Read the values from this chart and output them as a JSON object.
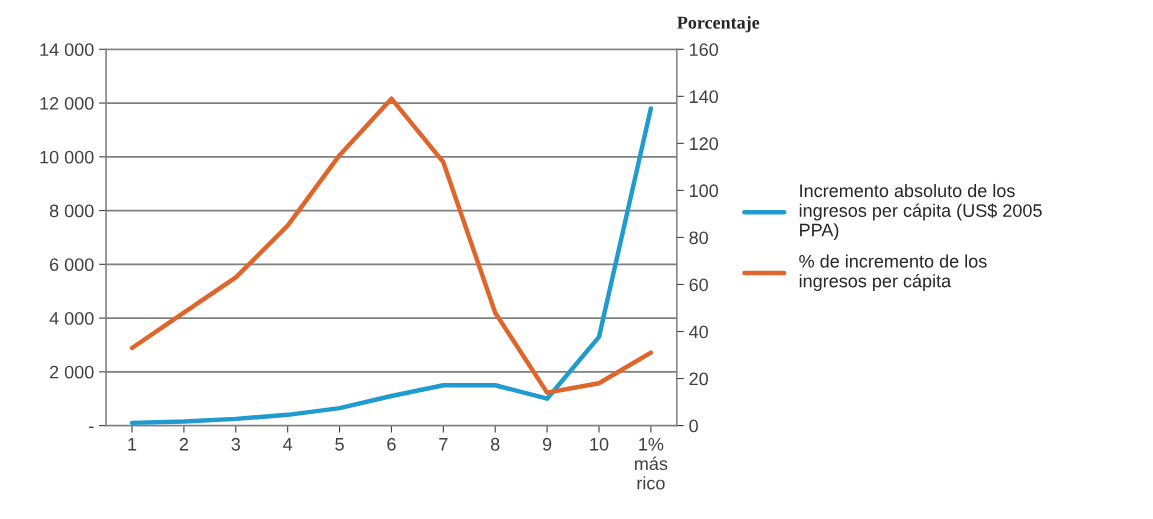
{
  "chart_data": {
    "type": "line",
    "y2label": "Porcentaje",
    "categories": [
      "1",
      "2",
      "3",
      "4",
      "5",
      "6",
      "7",
      "8",
      "9",
      "10",
      "1%\nmás\nrico"
    ],
    "series": [
      {
        "name": "Incremento absoluto de los\ningresos per cápita (US$ 2005\nPPA)",
        "color": "#1f9bd0",
        "values": [
          100,
          150,
          250,
          400,
          650,
          1100,
          1500,
          1500,
          1000,
          3300,
          11800
        ]
      },
      {
        "name": "% de incremento de los\ningresos per cápita",
        "color": "#e0652a",
        "axis": "y2",
        "values": [
          33,
          48,
          63,
          85,
          115,
          139,
          112,
          48,
          14,
          18,
          31
        ]
      }
    ],
    "ylim": [
      0,
      14000
    ],
    "yticks": [
      {
        "value": 0,
        "label": "-"
      },
      {
        "value": 2000,
        "label": "2 000"
      },
      {
        "value": 4000,
        "label": "4 000"
      },
      {
        "value": 6000,
        "label": "6 000"
      },
      {
        "value": 8000,
        "label": "8 000"
      },
      {
        "value": 10000,
        "label": "10 000"
      },
      {
        "value": 12000,
        "label": "12 000"
      },
      {
        "value": 14000,
        "label": "14 000"
      }
    ],
    "y2lim": [
      0,
      160
    ],
    "y2ticks": [
      0,
      20,
      40,
      60,
      80,
      100,
      120,
      140,
      160
    ],
    "grid": "y",
    "legend": "right",
    "marker": "none",
    "line_style": "solid"
  }
}
